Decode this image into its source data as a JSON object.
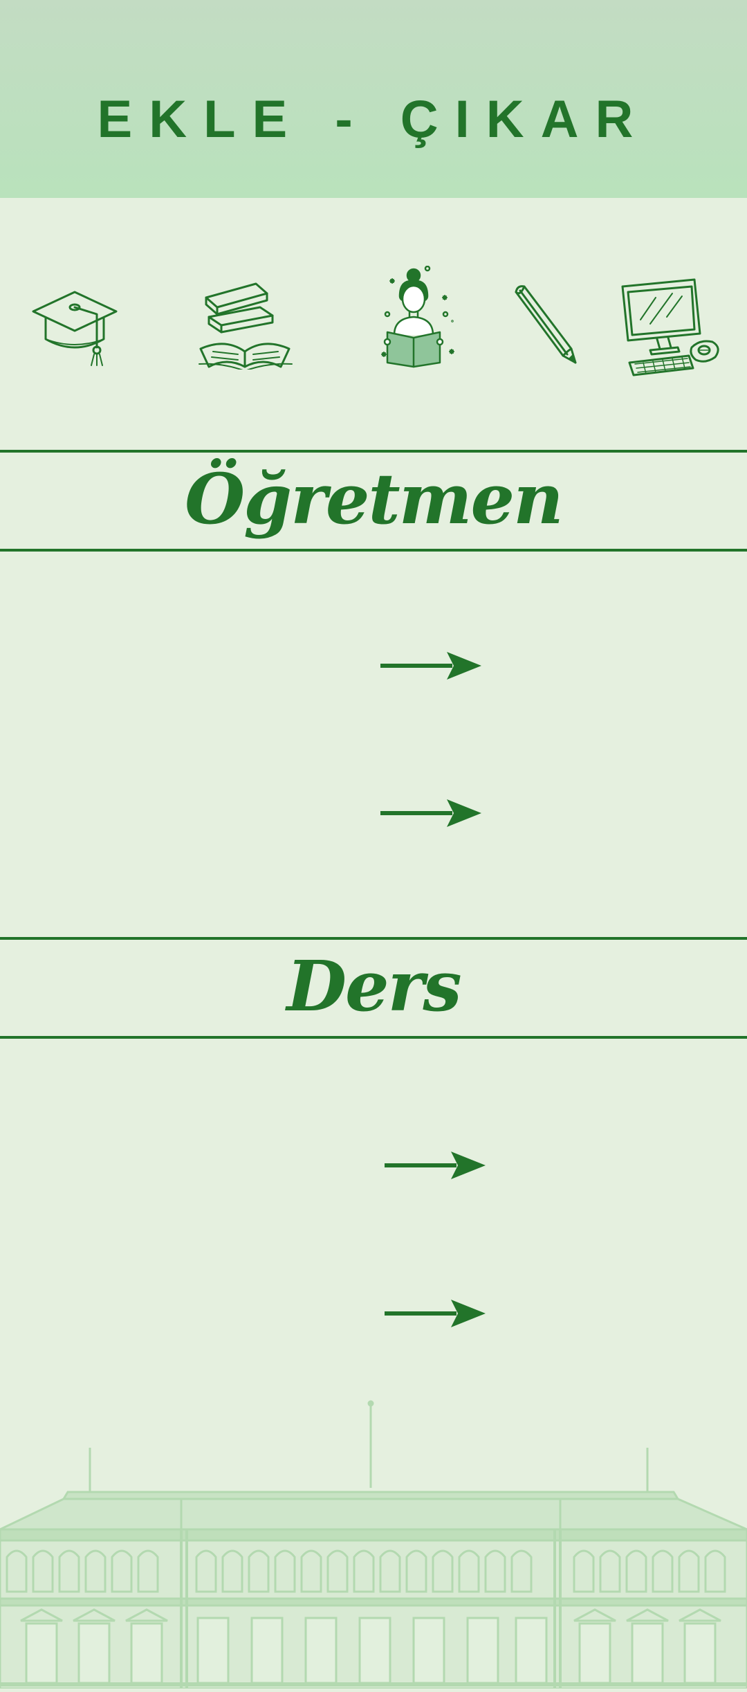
{
  "header": {
    "title": "EKLE - ÇIKAR",
    "background_color": "#bfe0c0",
    "title_color": "#22742a"
  },
  "icons": [
    {
      "name": "graduation-cap-icon"
    },
    {
      "name": "books-icon"
    },
    {
      "name": "reading-student-icon"
    },
    {
      "name": "pencil-icon"
    },
    {
      "name": "computer-icon"
    }
  ],
  "sections": [
    {
      "title": "Öğretmen",
      "items": [
        {
          "icon": "arrow-right-icon"
        },
        {
          "icon": "arrow-right-icon"
        }
      ]
    },
    {
      "title": "Ders",
      "items": [
        {
          "icon": "arrow-right-icon"
        },
        {
          "icon": "arrow-right-icon"
        }
      ]
    }
  ],
  "decoration": {
    "footer_illustration": "school-building-illustration"
  },
  "colors": {
    "page_background": "#e5f0df",
    "accent": "#22742a",
    "building_tint": "#b3d9b0"
  }
}
